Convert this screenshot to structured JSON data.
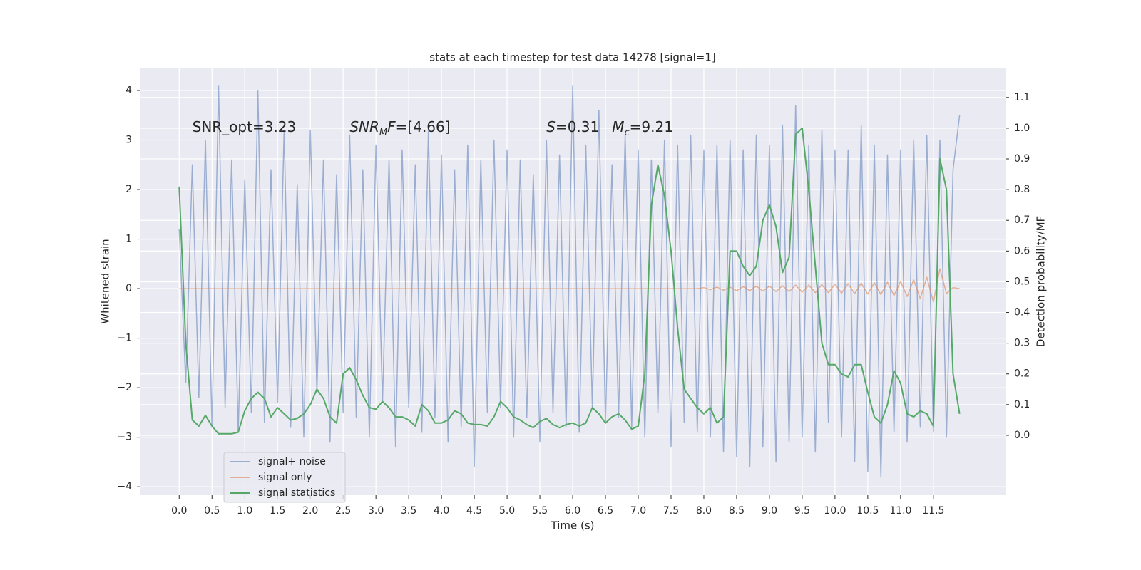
{
  "chart_data": {
    "type": "line",
    "title": "stats at each timestep for test data 14278 [signal=1]",
    "xlabel": "Time (s)",
    "ylabel": "Whitened strain",
    "y2label": "Detection probability/MF",
    "xlim": [
      -0.59,
      12.6
    ],
    "ylim": [
      -4.17,
      4.46
    ],
    "y2lim": [
      -0.195,
      1.197
    ],
    "xticks": [
      {
        "value": 0,
        "label": "0.0"
      },
      0.5,
      {
        "value": 1,
        "label": "1.0"
      },
      1.5,
      {
        "value": 2,
        "label": "2.0"
      },
      2.5,
      {
        "value": 3,
        "label": "3.0"
      },
      3.5,
      {
        "value": 4,
        "label": "4.0"
      },
      4.5,
      {
        "value": 5,
        "label": "5.0"
      },
      5.5,
      {
        "value": 6,
        "label": "6.0"
      },
      6.5,
      {
        "value": 7,
        "label": "7.0"
      },
      7.5,
      {
        "value": 8,
        "label": "8.0"
      },
      8.5,
      {
        "value": 9,
        "label": "9.0"
      },
      9.5,
      {
        "value": 10,
        "label": "10.0"
      },
      10.5,
      {
        "value": 11,
        "label": "11.0"
      },
      11.5
    ],
    "yticks": [
      4,
      3,
      2,
      1,
      0,
      {
        "value": -1,
        "label": "−1"
      },
      {
        "value": -2,
        "label": "−2"
      },
      {
        "value": -3,
        "label": "−3"
      },
      {
        "value": -4,
        "label": "−4"
      }
    ],
    "y2ticks": [
      {
        "value": 0,
        "label": "0.0"
      },
      0.1,
      0.2,
      0.3,
      0.4,
      0.5,
      0.6,
      0.7,
      0.8,
      0.9,
      {
        "value": 1,
        "label": "1.0"
      },
      1.1
    ],
    "grid": true,
    "legend": "lower left",
    "x": [
      0,
      0.1,
      0.2,
      0.3,
      0.4,
      0.5,
      0.6,
      0.7,
      0.8,
      0.9,
      1,
      1.1,
      1.2,
      1.3,
      1.4,
      1.5,
      1.6,
      1.7,
      1.8,
      1.9,
      2,
      2.1,
      2.2,
      2.3,
      2.4,
      2.5,
      2.6,
      2.7,
      2.8,
      2.9,
      3,
      3.1,
      3.2,
      3.3,
      3.4,
      3.5,
      3.6,
      3.7,
      3.8,
      3.9,
      4,
      4.1,
      4.2,
      4.3,
      4.4,
      4.5,
      4.6,
      4.7,
      4.8,
      4.9,
      5,
      5.1,
      5.2,
      5.3,
      5.4,
      5.5,
      5.6,
      5.7,
      5.8,
      5.9,
      6,
      6.1,
      6.2,
      6.3,
      6.4,
      6.5,
      6.6,
      6.7,
      6.8,
      6.9,
      7,
      7.1,
      7.2,
      7.3,
      7.4,
      7.5,
      7.6,
      7.7,
      7.8,
      7.9,
      8,
      8.1,
      8.2,
      8.3,
      8.4,
      8.5,
      8.6,
      8.7,
      8.8,
      8.9,
      9,
      9.1,
      9.2,
      9.3,
      9.4,
      9.5,
      9.6,
      9.7,
      9.8,
      9.9,
      10,
      10.1,
      10.2,
      10.3,
      10.4,
      10.5,
      10.6,
      10.7,
      10.8,
      10.9,
      11,
      11.1,
      11.2,
      11.3,
      11.4,
      11.5,
      11.6,
      11.7,
      11.8,
      11.9
    ],
    "series": [
      {
        "name": "signal+ noise",
        "color": "#4c72b0",
        "opacity": 0.5,
        "values": [
          1.2,
          -1.9,
          2.5,
          -2.2,
          3.0,
          -2.8,
          4.1,
          -2.4,
          2.6,
          -2.9,
          2.2,
          -2.5,
          4.0,
          -2.7,
          2.4,
          -2.3,
          3.2,
          -2.8,
          2.1,
          -3.0,
          3.2,
          -2.1,
          2.6,
          -3.1,
          2.3,
          -2.5,
          3.1,
          -2.6,
          2.4,
          -3.0,
          2.9,
          -2.3,
          2.6,
          -3.2,
          2.8,
          -2.4,
          2.5,
          -2.9,
          3.2,
          -2.6,
          2.7,
          -3.1,
          2.4,
          -2.8,
          2.9,
          -3.6,
          2.6,
          -2.5,
          3.0,
          -2.4,
          2.8,
          -3.0,
          2.6,
          -2.6,
          2.3,
          -3.1,
          3.0,
          -2.5,
          2.7,
          -2.8,
          4.1,
          -2.9,
          2.9,
          -2.4,
          3.6,
          -2.7,
          2.5,
          -2.6,
          3.1,
          -2.8,
          2.8,
          -3.0,
          2.6,
          -2.5,
          3.0,
          -3.2,
          2.9,
          -2.7,
          3.1,
          -2.9,
          2.8,
          -3.0,
          2.9,
          -3.3,
          3.0,
          -3.4,
          2.8,
          -3.6,
          3.1,
          -3.2,
          2.9,
          -3.5,
          3.3,
          -3.1,
          3.7,
          -3.0,
          2.9,
          -3.3,
          3.2,
          -2.7,
          2.8,
          -3.0,
          2.8,
          -3.5,
          3.3,
          -3.7,
          2.9,
          -3.8,
          2.7,
          -2.9,
          2.8,
          -3.1,
          3.0,
          -2.8,
          3.1,
          -2.9,
          3.0,
          -3.0,
          2.4,
          3.5
        ]
      },
      {
        "name": "signal only",
        "color": "#dd8452",
        "opacity": 0.6,
        "values": [
          0,
          0,
          0,
          0,
          0,
          0,
          0,
          0,
          0,
          0,
          0,
          0,
          0,
          0,
          0,
          0,
          0,
          0,
          0,
          0,
          0,
          0,
          0,
          0,
          0,
          0,
          0,
          0,
          0,
          0,
          0,
          0,
          0,
          0,
          0,
          0,
          0,
          0,
          0,
          0,
          0,
          0,
          0,
          0,
          0,
          0,
          0,
          0,
          0,
          0,
          0,
          0,
          0,
          0,
          0,
          0,
          0,
          0,
          0,
          0,
          0,
          0,
          0,
          0,
          0,
          0,
          0,
          0,
          0,
          0,
          0,
          0,
          0,
          0,
          0,
          0,
          0,
          0,
          0,
          0,
          0.02,
          -0.02,
          0.03,
          -0.03,
          0.03,
          -0.04,
          0.04,
          -0.04,
          0.05,
          -0.05,
          0.05,
          -0.06,
          0.06,
          -0.06,
          0.07,
          -0.07,
          0.07,
          -0.08,
          0.08,
          -0.08,
          0.09,
          -0.09,
          0.1,
          -0.1,
          0.11,
          -0.11,
          0.12,
          -0.12,
          0.13,
          -0.14,
          0.15,
          -0.16,
          0.18,
          -0.2,
          0.23,
          -0.27,
          0.4,
          -0.1,
          0.02,
          0
        ]
      },
      {
        "name": "signal statistics",
        "color": "#55a868",
        "axis": "y2",
        "values": [
          0.81,
          0.3,
          0.05,
          0.03,
          0.065,
          0.03,
          0.005,
          0.005,
          0.005,
          0.01,
          0.08,
          0.12,
          0.14,
          0.12,
          0.06,
          0.09,
          0.07,
          0.05,
          0.055,
          0.07,
          0.1,
          0.15,
          0.12,
          0.06,
          0.04,
          0.2,
          0.22,
          0.18,
          0.13,
          0.09,
          0.085,
          0.11,
          0.09,
          0.06,
          0.06,
          0.05,
          0.03,
          0.1,
          0.08,
          0.04,
          0.04,
          0.05,
          0.08,
          0.07,
          0.04,
          0.035,
          0.035,
          0.03,
          0.06,
          0.11,
          0.09,
          0.06,
          0.05,
          0.035,
          0.025,
          0.045,
          0.055,
          0.035,
          0.025,
          0.035,
          0.04,
          0.03,
          0.04,
          0.09,
          0.07,
          0.04,
          0.06,
          0.07,
          0.05,
          0.02,
          0.03,
          0.2,
          0.75,
          0.88,
          0.78,
          0.6,
          0.35,
          0.15,
          0.12,
          0.09,
          0.07,
          0.09,
          0.04,
          0.06,
          0.6,
          0.6,
          0.55,
          0.52,
          0.55,
          0.7,
          0.75,
          0.68,
          0.53,
          0.58,
          0.98,
          1.0,
          0.8,
          0.55,
          0.3,
          0.23,
          0.23,
          0.2,
          0.19,
          0.23,
          0.23,
          0.14,
          0.06,
          0.04,
          0.1,
          0.21,
          0.17,
          0.07,
          0.06,
          0.08,
          0.07,
          0.03,
          0.9,
          0.8,
          0.2,
          0.07
        ]
      }
    ],
    "annotations": [
      {
        "x": 0.2,
        "y": 3.25,
        "parts": [
          {
            "text": "SNR_opt=3.23"
          }
        ]
      },
      {
        "x": 2.6,
        "y": 3.25,
        "parts": [
          {
            "text": "SNR",
            "style": "italic"
          },
          {
            "text": "M",
            "style": "sub"
          },
          {
            "text": "F",
            "style": "italic"
          },
          {
            "text": "=[4.66]"
          }
        ]
      },
      {
        "x": 5.6,
        "y": 3.25,
        "parts": [
          {
            "text": "S",
            "style": "italic"
          },
          {
            "text": "=0.31"
          }
        ]
      },
      {
        "x": 6.6,
        "y": 3.25,
        "parts": [
          {
            "text": "M",
            "style": "italic"
          },
          {
            "text": "c",
            "style": "sub"
          },
          {
            "text": "=9.21"
          }
        ]
      }
    ]
  }
}
